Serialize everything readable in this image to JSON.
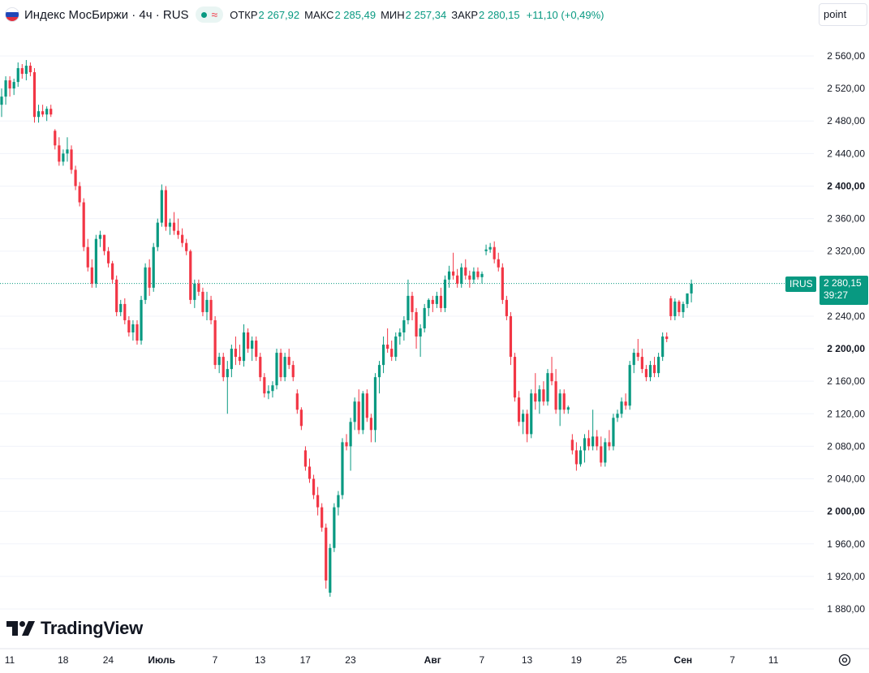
{
  "header": {
    "title": "Индекс МосБиржи · 4ч · RUS",
    "wave_icon": "≈",
    "ohlc": [
      {
        "label": "ОТКР",
        "value": "2 267,92"
      },
      {
        "label": "МАКС",
        "value": "2 285,49"
      },
      {
        "label": "МИН",
        "value": "2 257,34"
      },
      {
        "label": "ЗАКР",
        "value": "2 280,15"
      }
    ],
    "change": "+11,10 (+0,49%)"
  },
  "toolbar": {
    "units_label": "point"
  },
  "branding": {
    "logo_text": "TradingView"
  },
  "price_marker": {
    "symbol": "IRUS",
    "price": "2 280,15",
    "countdown": "39:27"
  },
  "colors": {
    "up": "#089981",
    "down": "#f23645",
    "grid": "#f0f3fa",
    "axis_text": "#131722",
    "flag_white": "#ffffff",
    "flag_blue": "#1f47b8",
    "flag_red": "#e03040"
  },
  "chart_data": {
    "type": "candlestick",
    "timeframe": "4ч",
    "y_axis": {
      "min": 1870,
      "max": 2580,
      "ticks": [
        2560,
        2520,
        2480,
        2440,
        2400,
        2360,
        2320,
        2240,
        2200,
        2160,
        2120,
        2080,
        2040,
        2000,
        1960,
        1920,
        1880
      ],
      "tick_labels": [
        "2 560,00",
        "2 520,00",
        "2 480,00",
        "2 440,00",
        "2 400,00",
        "2 360,00",
        "2 320,00",
        "2 240,00",
        "2 200,00",
        "2 160,00",
        "2 120,00",
        "2 080,00",
        "2 040,00",
        "2 000,00",
        "1 960,00",
        "1 920,00",
        "1 880,00"
      ],
      "bold_ticks": [
        2400,
        2200,
        2000
      ]
    },
    "x_axis": {
      "labels": [
        {
          "text": "11",
          "bold": false,
          "idx": 0
        },
        {
          "text": "18",
          "bold": false,
          "idx": 13
        },
        {
          "text": "24",
          "bold": false,
          "idx": 24
        },
        {
          "text": "Июль",
          "bold": true,
          "idx": 37
        },
        {
          "text": "7",
          "bold": false,
          "idx": 50
        },
        {
          "text": "13",
          "bold": false,
          "idx": 61
        },
        {
          "text": "17",
          "bold": false,
          "idx": 72
        },
        {
          "text": "23",
          "bold": false,
          "idx": 83
        },
        {
          "text": "Авг",
          "bold": true,
          "idx": 103
        },
        {
          "text": "7",
          "bold": false,
          "idx": 115
        },
        {
          "text": "13",
          "bold": false,
          "idx": 126
        },
        {
          "text": "19",
          "bold": false,
          "idx": 138
        },
        {
          "text": "25",
          "bold": false,
          "idx": 149
        },
        {
          "text": "Сен",
          "bold": true,
          "idx": 164
        },
        {
          "text": "7",
          "bold": false,
          "idx": 176
        },
        {
          "text": "11",
          "bold": false,
          "idx": 186
        }
      ]
    },
    "last_price": 2280.15,
    "candles": [
      {
        "o": 2500,
        "h": 2520,
        "l": 2485,
        "c": 2510
      },
      {
        "o": 2510,
        "h": 2535,
        "l": 2500,
        "c": 2530
      },
      {
        "o": 2530,
        "h": 2535,
        "l": 2510,
        "c": 2520
      },
      {
        "o": 2520,
        "h": 2532,
        "l": 2512,
        "c": 2528
      },
      {
        "o": 2528,
        "h": 2552,
        "l": 2522,
        "c": 2545
      },
      {
        "o": 2545,
        "h": 2550,
        "l": 2532,
        "c": 2538
      },
      {
        "o": 2538,
        "h": 2555,
        "l": 2530,
        "c": 2548
      },
      {
        "o": 2548,
        "h": 2552,
        "l": 2535,
        "c": 2540
      },
      {
        "o": 2540,
        "h": 2545,
        "l": 2478,
        "c": 2485
      },
      {
        "o": 2485,
        "h": 2500,
        "l": 2478,
        "c": 2492
      },
      {
        "o": 2492,
        "h": 2500,
        "l": 2485,
        "c": 2488
      },
      {
        "o": 2488,
        "h": 2498,
        "l": 2480,
        "c": 2495
      },
      {
        "o": 2495,
        "h": 2500,
        "l": 2485,
        "c": 2488
      },
      {
        "o": 2468,
        "h": 2470,
        "l": 2445,
        "c": 2450
      },
      {
        "o": 2450,
        "h": 2460,
        "l": 2425,
        "c": 2430
      },
      {
        "o": 2430,
        "h": 2445,
        "l": 2425,
        "c": 2440
      },
      {
        "o": 2440,
        "h": 2460,
        "l": 2430,
        "c": 2445
      },
      {
        "o": 2445,
        "h": 2450,
        "l": 2415,
        "c": 2420
      },
      {
        "o": 2420,
        "h": 2425,
        "l": 2395,
        "c": 2400
      },
      {
        "o": 2400,
        "h": 2405,
        "l": 2375,
        "c": 2380
      },
      {
        "o": 2380,
        "h": 2385,
        "l": 2320,
        "c": 2325
      },
      {
        "o": 2325,
        "h": 2335,
        "l": 2295,
        "c": 2300
      },
      {
        "o": 2300,
        "h": 2310,
        "l": 2275,
        "c": 2280
      },
      {
        "o": 2280,
        "h": 2340,
        "l": 2275,
        "c": 2335
      },
      {
        "o": 2335,
        "h": 2345,
        "l": 2325,
        "c": 2340
      },
      {
        "o": 2340,
        "h": 2340,
        "l": 2315,
        "c": 2320
      },
      {
        "o": 2320,
        "h": 2325,
        "l": 2300,
        "c": 2305
      },
      {
        "o": 2305,
        "h": 2308,
        "l": 2280,
        "c": 2285
      },
      {
        "o": 2285,
        "h": 2290,
        "l": 2240,
        "c": 2245
      },
      {
        "o": 2245,
        "h": 2260,
        "l": 2240,
        "c": 2255
      },
      {
        "o": 2255,
        "h": 2262,
        "l": 2230,
        "c": 2235
      },
      {
        "o": 2235,
        "h": 2240,
        "l": 2215,
        "c": 2220
      },
      {
        "o": 2220,
        "h": 2235,
        "l": 2210,
        "c": 2230
      },
      {
        "o": 2230,
        "h": 2235,
        "l": 2205,
        "c": 2210
      },
      {
        "o": 2210,
        "h": 2265,
        "l": 2205,
        "c": 2260
      },
      {
        "o": 2260,
        "h": 2305,
        "l": 2255,
        "c": 2300
      },
      {
        "o": 2300,
        "h": 2310,
        "l": 2265,
        "c": 2275
      },
      {
        "o": 2275,
        "h": 2330,
        "l": 2270,
        "c": 2325
      },
      {
        "o": 2325,
        "h": 2360,
        "l": 2320,
        "c": 2355
      },
      {
        "o": 2355,
        "h": 2402,
        "l": 2350,
        "c": 2395
      },
      {
        "o": 2395,
        "h": 2400,
        "l": 2345,
        "c": 2350
      },
      {
        "o": 2350,
        "h": 2360,
        "l": 2340,
        "c": 2355
      },
      {
        "o": 2355,
        "h": 2368,
        "l": 2340,
        "c": 2345
      },
      {
        "o": 2345,
        "h": 2360,
        "l": 2335,
        "c": 2340
      },
      {
        "o": 2340,
        "h": 2348,
        "l": 2325,
        "c": 2330
      },
      {
        "o": 2330,
        "h": 2335,
        "l": 2315,
        "c": 2320
      },
      {
        "o": 2320,
        "h": 2322,
        "l": 2255,
        "c": 2260
      },
      {
        "o": 2260,
        "h": 2285,
        "l": 2250,
        "c": 2280
      },
      {
        "o": 2280,
        "h": 2285,
        "l": 2265,
        "c": 2270
      },
      {
        "o": 2270,
        "h": 2275,
        "l": 2240,
        "c": 2245
      },
      {
        "o": 2245,
        "h": 2270,
        "l": 2235,
        "c": 2260
      },
      {
        "o": 2260,
        "h": 2265,
        "l": 2230,
        "c": 2235
      },
      {
        "o": 2235,
        "h": 2240,
        "l": 2175,
        "c": 2180
      },
      {
        "o": 2180,
        "h": 2195,
        "l": 2170,
        "c": 2190
      },
      {
        "o": 2190,
        "h": 2195,
        "l": 2160,
        "c": 2165
      },
      {
        "o": 2165,
        "h": 2185,
        "l": 2120,
        "c": 2175
      },
      {
        "o": 2175,
        "h": 2205,
        "l": 2165,
        "c": 2200
      },
      {
        "o": 2200,
        "h": 2215,
        "l": 2180,
        "c": 2190
      },
      {
        "o": 2190,
        "h": 2205,
        "l": 2180,
        "c": 2185
      },
      {
        "o": 2185,
        "h": 2230,
        "l": 2178,
        "c": 2220
      },
      {
        "o": 2220,
        "h": 2225,
        "l": 2195,
        "c": 2200
      },
      {
        "o": 2200,
        "h": 2215,
        "l": 2185,
        "c": 2210
      },
      {
        "o": 2210,
        "h": 2215,
        "l": 2185,
        "c": 2190
      },
      {
        "o": 2190,
        "h": 2195,
        "l": 2160,
        "c": 2165
      },
      {
        "o": 2165,
        "h": 2170,
        "l": 2140,
        "c": 2145
      },
      {
        "o": 2145,
        "h": 2155,
        "l": 2138,
        "c": 2148
      },
      {
        "o": 2148,
        "h": 2160,
        "l": 2140,
        "c": 2155
      },
      {
        "o": 2155,
        "h": 2200,
        "l": 2150,
        "c": 2195
      },
      {
        "o": 2195,
        "h": 2200,
        "l": 2160,
        "c": 2165
      },
      {
        "o": 2165,
        "h": 2195,
        "l": 2160,
        "c": 2190
      },
      {
        "o": 2190,
        "h": 2200,
        "l": 2175,
        "c": 2180
      },
      {
        "o": 2180,
        "h": 2185,
        "l": 2160,
        "c": 2165
      },
      {
        "o": 2145,
        "h": 2150,
        "l": 2120,
        "c": 2125
      },
      {
        "o": 2125,
        "h": 2128,
        "l": 2100,
        "c": 2105
      },
      {
        "o": 2075,
        "h": 2080,
        "l": 2050,
        "c": 2055
      },
      {
        "o": 2055,
        "h": 2065,
        "l": 2035,
        "c": 2040
      },
      {
        "o": 2040,
        "h": 2045,
        "l": 2015,
        "c": 2020
      },
      {
        "o": 2020,
        "h": 2030,
        "l": 1995,
        "c": 2005
      },
      {
        "o": 2005,
        "h": 2010,
        "l": 1975,
        "c": 1980
      },
      {
        "o": 1980,
        "h": 1985,
        "l": 1905,
        "c": 1915
      },
      {
        "o": 1900,
        "h": 1960,
        "l": 1895,
        "c": 1955
      },
      {
        "o": 1955,
        "h": 2010,
        "l": 1950,
        "c": 2005
      },
      {
        "o": 2005,
        "h": 2025,
        "l": 1995,
        "c": 2020
      },
      {
        "o": 2020,
        "h": 2090,
        "l": 2015,
        "c": 2085
      },
      {
        "o": 2085,
        "h": 2095,
        "l": 2075,
        "c": 2080
      },
      {
        "o": 2080,
        "h": 2115,
        "l": 2050,
        "c": 2110
      },
      {
        "o": 2110,
        "h": 2140,
        "l": 2100,
        "c": 2135
      },
      {
        "o": 2135,
        "h": 2150,
        "l": 2095,
        "c": 2100
      },
      {
        "o": 2100,
        "h": 2148,
        "l": 2095,
        "c": 2145
      },
      {
        "o": 2145,
        "h": 2150,
        "l": 2110,
        "c": 2115
      },
      {
        "o": 2115,
        "h": 2120,
        "l": 2085,
        "c": 2100
      },
      {
        "o": 2100,
        "h": 2170,
        "l": 2085,
        "c": 2165
      },
      {
        "o": 2165,
        "h": 2185,
        "l": 2145,
        "c": 2180
      },
      {
        "o": 2180,
        "h": 2215,
        "l": 2170,
        "c": 2205
      },
      {
        "o": 2205,
        "h": 2225,
        "l": 2195,
        "c": 2200
      },
      {
        "o": 2200,
        "h": 2210,
        "l": 2185,
        "c": 2190
      },
      {
        "o": 2190,
        "h": 2220,
        "l": 2185,
        "c": 2215
      },
      {
        "o": 2215,
        "h": 2225,
        "l": 2205,
        "c": 2220
      },
      {
        "o": 2220,
        "h": 2240,
        "l": 2210,
        "c": 2235
      },
      {
        "o": 2235,
        "h": 2285,
        "l": 2230,
        "c": 2265
      },
      {
        "o": 2265,
        "h": 2270,
        "l": 2235,
        "c": 2245
      },
      {
        "o": 2245,
        "h": 2250,
        "l": 2200,
        "c": 2215
      },
      {
        "o": 2215,
        "h": 2230,
        "l": 2190,
        "c": 2225
      },
      {
        "o": 2225,
        "h": 2255,
        "l": 2220,
        "c": 2250
      },
      {
        "o": 2250,
        "h": 2262,
        "l": 2240,
        "c": 2260
      },
      {
        "o": 2260,
        "h": 2265,
        "l": 2245,
        "c": 2255
      },
      {
        "o": 2255,
        "h": 2270,
        "l": 2250,
        "c": 2265
      },
      {
        "o": 2265,
        "h": 2275,
        "l": 2245,
        "c": 2250
      },
      {
        "o": 2250,
        "h": 2290,
        "l": 2245,
        "c": 2285
      },
      {
        "o": 2285,
        "h": 2302,
        "l": 2275,
        "c": 2295
      },
      {
        "o": 2295,
        "h": 2318,
        "l": 2285,
        "c": 2290
      },
      {
        "o": 2290,
        "h": 2298,
        "l": 2275,
        "c": 2280
      },
      {
        "o": 2280,
        "h": 2305,
        "l": 2275,
        "c": 2300
      },
      {
        "o": 2300,
        "h": 2310,
        "l": 2285,
        "c": 2290
      },
      {
        "o": 2290,
        "h": 2296,
        "l": 2275,
        "c": 2285
      },
      {
        "o": 2285,
        "h": 2300,
        "l": 2280,
        "c": 2295
      },
      {
        "o": 2295,
        "h": 2300,
        "l": 2285,
        "c": 2288
      },
      {
        "o": 2288,
        "h": 2295,
        "l": 2280,
        "c": 2292
      },
      {
        "o": 2320,
        "h": 2328,
        "l": 2315,
        "c": 2322
      },
      {
        "o": 2322,
        "h": 2330,
        "l": 2318,
        "c": 2325
      },
      {
        "o": 2325,
        "h": 2332,
        "l": 2305,
        "c": 2310
      },
      {
        "o": 2310,
        "h": 2318,
        "l": 2295,
        "c": 2300
      },
      {
        "o": 2300,
        "h": 2305,
        "l": 2255,
        "c": 2260
      },
      {
        "o": 2260,
        "h": 2265,
        "l": 2235,
        "c": 2240
      },
      {
        "o": 2240,
        "h": 2245,
        "l": 2180,
        "c": 2190
      },
      {
        "o": 2190,
        "h": 2195,
        "l": 2135,
        "c": 2140
      },
      {
        "o": 2140,
        "h": 2148,
        "l": 2105,
        "c": 2110
      },
      {
        "o": 2110,
        "h": 2125,
        "l": 2095,
        "c": 2120
      },
      {
        "o": 2120,
        "h": 2125,
        "l": 2085,
        "c": 2095
      },
      {
        "o": 2095,
        "h": 2150,
        "l": 2090,
        "c": 2145
      },
      {
        "o": 2145,
        "h": 2170,
        "l": 2125,
        "c": 2135
      },
      {
        "o": 2135,
        "h": 2155,
        "l": 2120,
        "c": 2150
      },
      {
        "o": 2150,
        "h": 2160,
        "l": 2130,
        "c": 2135
      },
      {
        "o": 2135,
        "h": 2175,
        "l": 2130,
        "c": 2170
      },
      {
        "o": 2170,
        "h": 2190,
        "l": 2155,
        "c": 2160
      },
      {
        "o": 2160,
        "h": 2175,
        "l": 2120,
        "c": 2125
      },
      {
        "o": 2125,
        "h": 2150,
        "l": 2105,
        "c": 2145
      },
      {
        "o": 2145,
        "h": 2150,
        "l": 2120,
        "c": 2125
      },
      {
        "o": 2125,
        "h": 2130,
        "l": 2120,
        "c": 2128
      },
      {
        "o": 2088,
        "h": 2095,
        "l": 2070,
        "c": 2075
      },
      {
        "o": 2075,
        "h": 2085,
        "l": 2050,
        "c": 2058
      },
      {
        "o": 2058,
        "h": 2080,
        "l": 2055,
        "c": 2075
      },
      {
        "o": 2075,
        "h": 2095,
        "l": 2060,
        "c": 2090
      },
      {
        "o": 2090,
        "h": 2100,
        "l": 2075,
        "c": 2080
      },
      {
        "o": 2080,
        "h": 2125,
        "l": 2075,
        "c": 2092
      },
      {
        "o": 2092,
        "h": 2100,
        "l": 2075,
        "c": 2080
      },
      {
        "o": 2080,
        "h": 2092,
        "l": 2055,
        "c": 2060
      },
      {
        "o": 2060,
        "h": 2090,
        "l": 2055,
        "c": 2085
      },
      {
        "o": 2085,
        "h": 2100,
        "l": 2075,
        "c": 2080
      },
      {
        "o": 2080,
        "h": 2120,
        "l": 2075,
        "c": 2115
      },
      {
        "o": 2115,
        "h": 2125,
        "l": 2110,
        "c": 2120
      },
      {
        "o": 2120,
        "h": 2140,
        "l": 2115,
        "c": 2135
      },
      {
        "o": 2135,
        "h": 2145,
        "l": 2125,
        "c": 2130
      },
      {
        "o": 2130,
        "h": 2185,
        "l": 2125,
        "c": 2180
      },
      {
        "o": 2180,
        "h": 2200,
        "l": 2170,
        "c": 2195
      },
      {
        "o": 2195,
        "h": 2212,
        "l": 2185,
        "c": 2190
      },
      {
        "o": 2190,
        "h": 2200,
        "l": 2170,
        "c": 2175
      },
      {
        "o": 2175,
        "h": 2180,
        "l": 2160,
        "c": 2165
      },
      {
        "o": 2165,
        "h": 2185,
        "l": 2160,
        "c": 2180
      },
      {
        "o": 2180,
        "h": 2190,
        "l": 2165,
        "c": 2170
      },
      {
        "o": 2170,
        "h": 2195,
        "l": 2165,
        "c": 2190
      },
      {
        "o": 2190,
        "h": 2220,
        "l": 2185,
        "c": 2215
      },
      {
        "o": 2215,
        "h": 2220,
        "l": 2208,
        "c": 2212
      },
      {
        "o": 2262,
        "h": 2265,
        "l": 2235,
        "c": 2240
      },
      {
        "o": 2240,
        "h": 2262,
        "l": 2235,
        "c": 2258
      },
      {
        "o": 2258,
        "h": 2260,
        "l": 2240,
        "c": 2245
      },
      {
        "o": 2245,
        "h": 2258,
        "l": 2238,
        "c": 2255
      },
      {
        "o": 2255,
        "h": 2268,
        "l": 2250,
        "c": 2268
      },
      {
        "o": 2268,
        "h": 2285,
        "l": 2257,
        "c": 2280
      }
    ]
  }
}
